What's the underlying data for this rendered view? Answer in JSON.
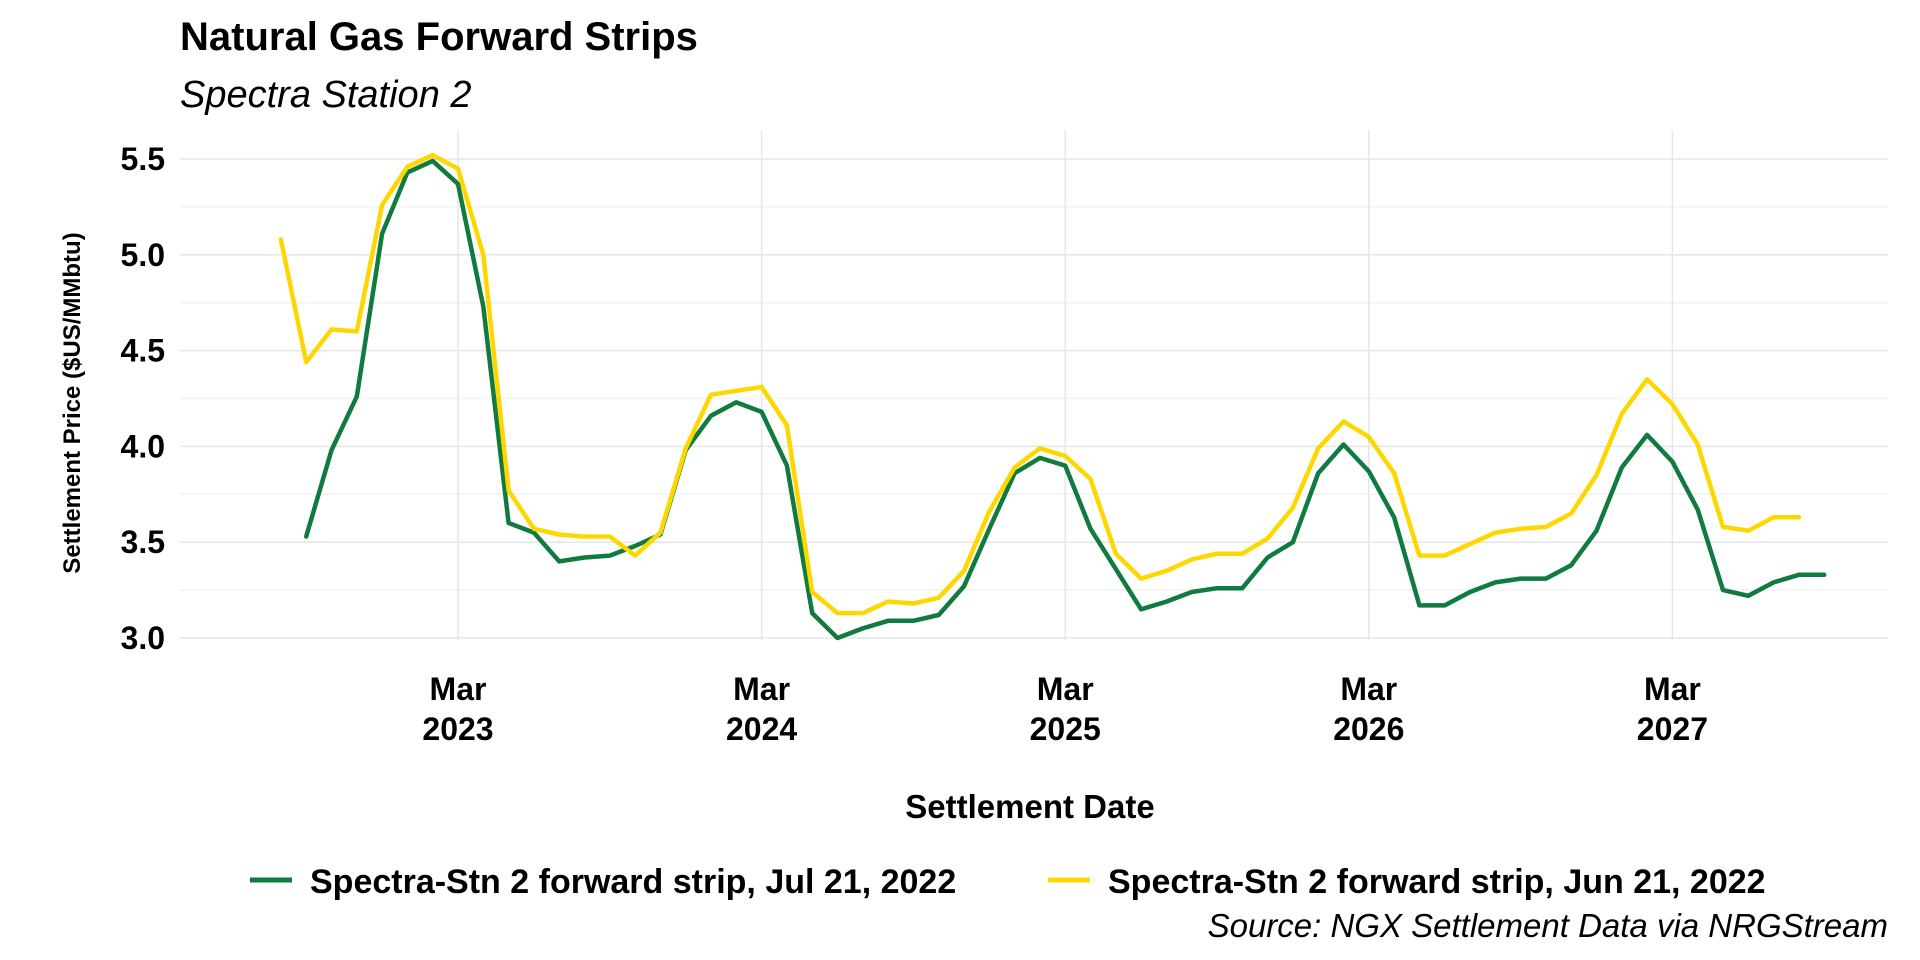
{
  "chart_data": {
    "type": "line",
    "title": "Natural Gas Forward Strips",
    "subtitle": "Spectra Station 2",
    "xlabel": "Settlement Date",
    "ylabel": "Settlement Price ($US/MMbtu)",
    "ylim": [
      3.0,
      5.5
    ],
    "y_ticks": [
      "3.0",
      "3.5",
      "4.0",
      "4.5",
      "5.0",
      "5.5"
    ],
    "x_ticks": [
      {
        "month": "Mar",
        "year": "2023",
        "date": "2023-03"
      },
      {
        "month": "Mar",
        "year": "2024",
        "date": "2024-03"
      },
      {
        "month": "Mar",
        "year": "2025",
        "date": "2025-03"
      },
      {
        "month": "Mar",
        "year": "2026",
        "date": "2026-03"
      },
      {
        "month": "Mar",
        "year": "2027",
        "date": "2027-03"
      }
    ],
    "grid": true,
    "legend_position": "bottom",
    "caption": "Source: NGX Settlement Data via NRGStream",
    "series": [
      {
        "name": "Spectra-Stn 2 forward strip, Jul 21, 2022",
        "color": "#117a3e",
        "start": "2022-09",
        "values": [
          3.53,
          3.98,
          4.26,
          5.11,
          5.43,
          5.49,
          5.37,
          4.73,
          3.6,
          3.55,
          3.4,
          3.42,
          3.43,
          3.48,
          3.54,
          3.98,
          4.16,
          4.23,
          4.18,
          3.9,
          3.13,
          3.0,
          3.05,
          3.09,
          3.09,
          3.12,
          3.27,
          3.57,
          3.86,
          3.94,
          3.9,
          3.57,
          3.36,
          3.15,
          3.19,
          3.24,
          3.26,
          3.26,
          3.42,
          3.5,
          3.86,
          4.01,
          3.87,
          3.63,
          3.17,
          3.17,
          3.24,
          3.29,
          3.31,
          3.31,
          3.38,
          3.56,
          3.89,
          4.06,
          3.92,
          3.67,
          3.25,
          3.22,
          3.29,
          3.33,
          3.33
        ]
      },
      {
        "name": "Spectra-Stn 2 forward strip, Jun 21, 2022",
        "color": "#ffd700",
        "start": "2022-08",
        "values": [
          5.08,
          4.44,
          4.61,
          4.6,
          5.26,
          5.46,
          5.52,
          5.45,
          5.0,
          3.77,
          3.57,
          3.54,
          3.53,
          3.53,
          3.43,
          3.55,
          3.99,
          4.27,
          4.29,
          4.31,
          4.11,
          3.24,
          3.13,
          3.13,
          3.19,
          3.18,
          3.21,
          3.35,
          3.66,
          3.89,
          3.99,
          3.95,
          3.83,
          3.44,
          3.31,
          3.35,
          3.41,
          3.44,
          3.44,
          3.52,
          3.68,
          3.99,
          4.13,
          4.05,
          3.86,
          3.43,
          3.43,
          3.49,
          3.55,
          3.57,
          3.58,
          3.65,
          3.85,
          4.17,
          4.35,
          4.22,
          4.01,
          3.58,
          3.56,
          3.63,
          3.63
        ]
      }
    ]
  }
}
